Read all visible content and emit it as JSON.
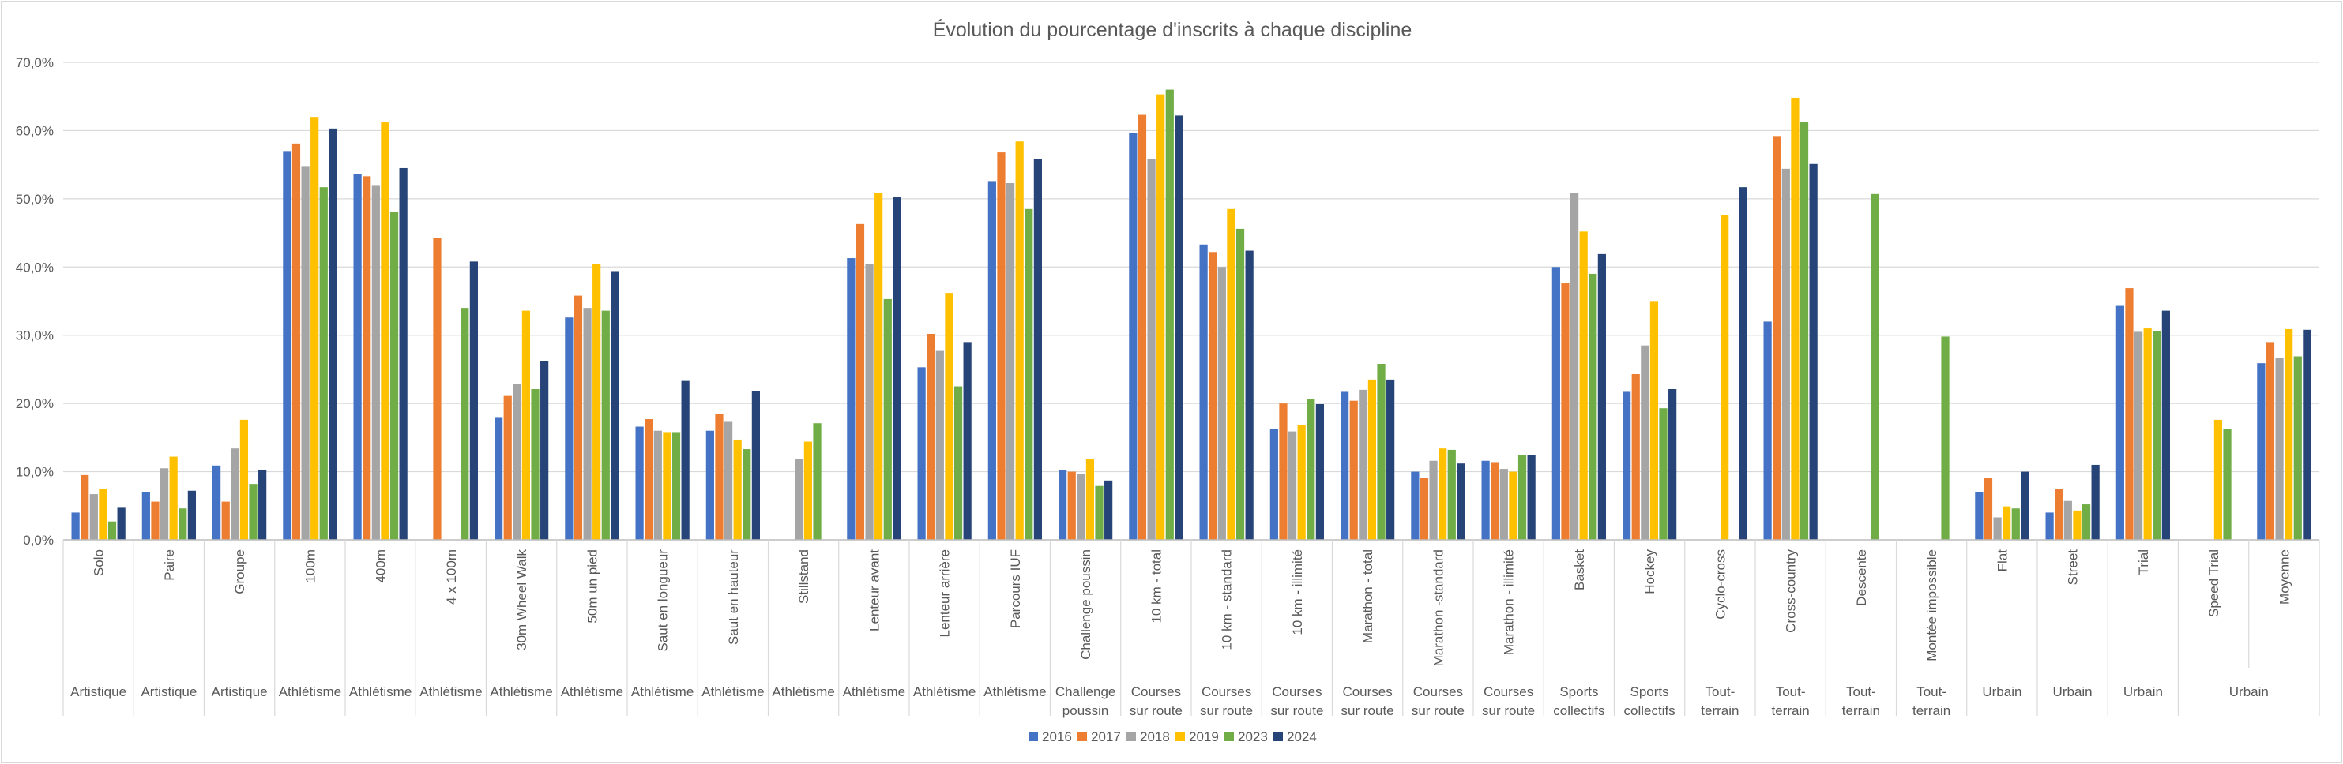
{
  "chart_data": {
    "type": "bar",
    "title": "Évolution du pourcentage d'inscrits à chaque discipline",
    "ylim": [
      0,
      70
    ],
    "yticks": [
      "0,0%",
      "10,0%",
      "20,0%",
      "30,0%",
      "40,0%",
      "50,0%",
      "60,0%",
      "70,0%"
    ],
    "grid": true,
    "legend_position": "bottom",
    "categories": [
      {
        "label": "Solo",
        "group": "Artistique"
      },
      {
        "label": "Paire",
        "group": "Artistique"
      },
      {
        "label": "Groupe",
        "group": "Artistique"
      },
      {
        "label": "100m",
        "group": "Athlétisme"
      },
      {
        "label": "400m",
        "group": "Athlétisme"
      },
      {
        "label": "4 x 100m",
        "group": "Athlétisme"
      },
      {
        "label": "30m Wheel Walk",
        "group": "Athlétisme"
      },
      {
        "label": "50m un pied",
        "group": "Athlétisme"
      },
      {
        "label": "Saut en longueur",
        "group": "Athlétisme"
      },
      {
        "label": "Saut en hauteur",
        "group": "Athlétisme"
      },
      {
        "label": "Stillstand",
        "group": "Athlétisme"
      },
      {
        "label": "Lenteur avant",
        "group": "Athlétisme"
      },
      {
        "label": "Lenteur arrière",
        "group": "Athlétisme"
      },
      {
        "label": "Parcours IUF",
        "group": "Athlétisme"
      },
      {
        "label": "Challenge poussin",
        "group": "Challenge poussin"
      },
      {
        "label": "10 km - total",
        "group": "Courses sur route"
      },
      {
        "label": "10 km - standard",
        "group": "Courses sur route"
      },
      {
        "label": "10 km - illimité",
        "group": "Courses sur route"
      },
      {
        "label": "Marathon - total",
        "group": "Courses sur route"
      },
      {
        "label": "Marathon -standard",
        "group": "Courses sur route"
      },
      {
        "label": "Marathon - illimité",
        "group": "Courses sur route"
      },
      {
        "label": "Basket",
        "group": "Sports collectifs"
      },
      {
        "label": "Hockey",
        "group": "Sports collectifs"
      },
      {
        "label": "Cyclo-cross",
        "group": "Tout-terrain"
      },
      {
        "label": "Cross-country",
        "group": "Tout-terrain"
      },
      {
        "label": "Descente",
        "group": "Tout-terrain"
      },
      {
        "label": "Montée impossible",
        "group": "Tout-terrain"
      },
      {
        "label": "Flat",
        "group": "Urbain"
      },
      {
        "label": "Street",
        "group": "Urbain"
      },
      {
        "label": "Trial",
        "group": "Urbain"
      },
      {
        "label": "Speed Trial",
        "group": "Urbain"
      },
      {
        "label": "Moyenne",
        "group": "Urbain"
      }
    ],
    "group_labels": [
      {
        "label": "Artistique",
        "span": 1
      },
      {
        "label": "Artistique",
        "span": 1
      },
      {
        "label": "Artistique",
        "span": 1
      },
      {
        "label": "Athlétisme",
        "span": 1
      },
      {
        "label": "Athlétisme",
        "span": 1
      },
      {
        "label": "Athlétisme",
        "span": 1
      },
      {
        "label": "Athlétisme",
        "span": 1
      },
      {
        "label": "Athlétisme",
        "span": 1
      },
      {
        "label": "Athlétisme",
        "span": 1
      },
      {
        "label": "Athlétisme",
        "span": 1
      },
      {
        "label": "Athlétisme",
        "span": 1
      },
      {
        "label": "Athlétisme",
        "span": 1
      },
      {
        "label": "Athlétisme",
        "span": 1
      },
      {
        "label": "Athlétisme",
        "span": 1
      },
      {
        "label": "Challenge poussin",
        "span": 1
      },
      {
        "label": "Courses sur route",
        "span": 1
      },
      {
        "label": "Courses sur route",
        "span": 1
      },
      {
        "label": "Courses sur route",
        "span": 1
      },
      {
        "label": "Courses sur route",
        "span": 1
      },
      {
        "label": "Courses sur route",
        "span": 1
      },
      {
        "label": "Courses sur route",
        "span": 1
      },
      {
        "label": "Sports collectifs",
        "span": 1
      },
      {
        "label": "Sports collectifs",
        "span": 1
      },
      {
        "label": "Tout-terrain",
        "span": 1
      },
      {
        "label": "Tout-terrain",
        "span": 1
      },
      {
        "label": "Tout-terrain",
        "span": 1
      },
      {
        "label": "Tout-terrain",
        "span": 1
      },
      {
        "label": "Urbain",
        "span": 1
      },
      {
        "label": "Urbain",
        "span": 1
      },
      {
        "label": "Urbain",
        "span": 1
      },
      {
        "label": "Urbain",
        "span": 2
      }
    ],
    "series": [
      {
        "name": "2016",
        "color": "#4472C4",
        "values": [
          4.0,
          7.0,
          10.9,
          57.0,
          53.6,
          null,
          18.0,
          32.6,
          16.6,
          16.0,
          null,
          41.3,
          25.3,
          52.6,
          10.3,
          59.7,
          43.3,
          16.3,
          21.7,
          10.0,
          11.6,
          40.0,
          21.7,
          null,
          32.0,
          null,
          null,
          7.0,
          4.0,
          34.3,
          null,
          25.9
        ]
      },
      {
        "name": "2017",
        "color": "#ED7D31",
        "values": [
          9.5,
          5.6,
          5.6,
          58.1,
          53.3,
          44.3,
          21.1,
          35.8,
          17.7,
          18.5,
          null,
          46.3,
          30.2,
          56.8,
          10.0,
          62.3,
          42.2,
          20.0,
          20.4,
          9.1,
          11.4,
          37.6,
          24.3,
          null,
          59.2,
          null,
          null,
          9.1,
          7.5,
          36.9,
          null,
          29.0
        ]
      },
      {
        "name": "2018",
        "color": "#A5A5A5",
        "values": [
          6.7,
          10.5,
          13.4,
          54.8,
          51.9,
          null,
          22.8,
          34.0,
          16.0,
          17.3,
          11.9,
          40.4,
          27.7,
          52.3,
          9.7,
          55.8,
          40.0,
          15.9,
          22.0,
          11.6,
          10.4,
          50.9,
          28.5,
          null,
          54.4,
          null,
          null,
          3.3,
          5.7,
          30.5,
          null,
          26.7
        ]
      },
      {
        "name": "2019",
        "color": "#FFC000",
        "values": [
          7.5,
          12.2,
          17.6,
          62.0,
          61.2,
          null,
          33.6,
          40.4,
          15.8,
          14.7,
          14.4,
          50.9,
          36.2,
          58.4,
          11.8,
          65.3,
          48.5,
          16.8,
          23.5,
          13.4,
          10.0,
          45.2,
          34.9,
          47.6,
          64.8,
          null,
          null,
          4.9,
          4.3,
          31.0,
          17.6,
          30.9
        ]
      },
      {
        "name": "2023",
        "color": "#70AD47",
        "values": [
          2.7,
          4.6,
          8.2,
          51.7,
          48.1,
          34.0,
          22.1,
          33.6,
          15.8,
          13.3,
          17.1,
          35.3,
          22.5,
          48.5,
          7.9,
          66.0,
          45.6,
          20.6,
          25.8,
          13.2,
          12.4,
          39.0,
          19.3,
          null,
          61.3,
          50.7,
          29.8,
          4.6,
          5.2,
          30.6,
          16.3,
          26.9
        ]
      },
      {
        "name": "2024",
        "color": "#264478",
        "values": [
          4.7,
          7.2,
          10.3,
          60.3,
          54.5,
          40.8,
          26.2,
          39.4,
          23.3,
          21.8,
          null,
          50.3,
          29.0,
          55.8,
          8.7,
          62.2,
          42.4,
          19.9,
          23.5,
          11.2,
          12.4,
          41.9,
          22.1,
          51.7,
          55.1,
          null,
          null,
          10.0,
          11.0,
          33.6,
          null,
          30.8
        ]
      }
    ]
  }
}
